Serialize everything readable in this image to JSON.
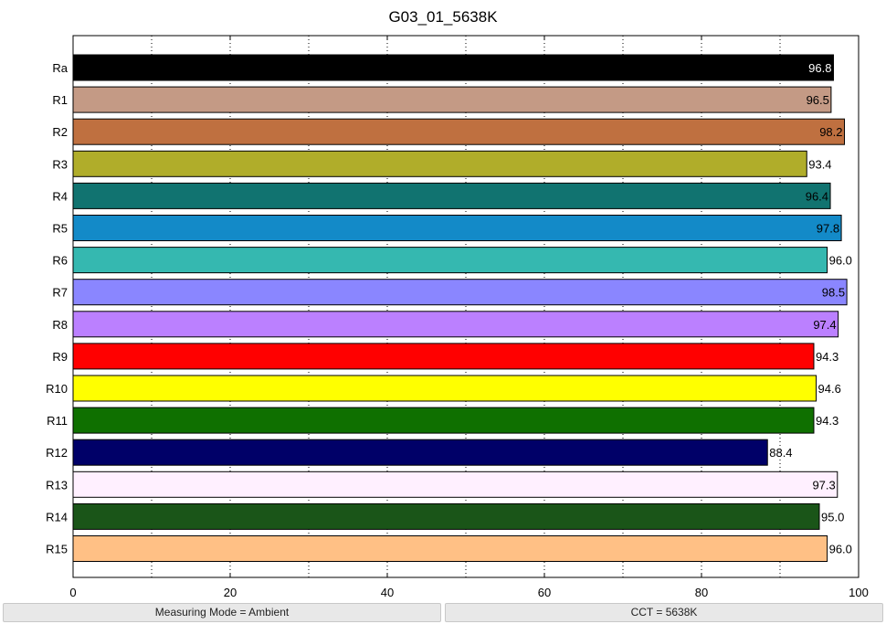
{
  "chart_data": {
    "type": "bar",
    "orientation": "horizontal",
    "title": "G03_01_5638K",
    "xlabel": "",
    "ylabel": "",
    "xlim": [
      0,
      100
    ],
    "xticks": [
      0,
      20,
      40,
      60,
      80,
      100
    ],
    "grid": "vertical dotted",
    "categories": [
      "Ra",
      "R1",
      "R2",
      "R3",
      "R4",
      "R5",
      "R6",
      "R7",
      "R8",
      "R9",
      "R10",
      "R11",
      "R12",
      "R13",
      "R14",
      "R15"
    ],
    "values": [
      96.8,
      96.5,
      98.2,
      93.4,
      96.4,
      97.8,
      96.0,
      98.5,
      97.4,
      94.3,
      94.6,
      94.3,
      88.4,
      97.3,
      95.0,
      96.0
    ],
    "value_labels": [
      "96.8",
      "96.5",
      "98.2",
      "93.4",
      "96.4",
      "97.8",
      "96.0",
      "98.5",
      "97.4",
      "94.3",
      "94.6",
      "94.3",
      "88.4",
      "97.3",
      "95.0",
      "96.0"
    ],
    "colors": [
      "#000000",
      "#c49a85",
      "#bf7040",
      "#b0ad2a",
      "#117370",
      "#138ac8",
      "#35b8b0",
      "#8a86ff",
      "#bb80ff",
      "#ff0000",
      "#ffff00",
      "#0f7000",
      "#000068",
      "#fff0ff",
      "#1a5518",
      "#ffc085"
    ],
    "label_colors": [
      "#ffffff",
      "#000000",
      "#000000",
      "#000000",
      "#000000",
      "#000000",
      "#000000",
      "#000000",
      "#000000",
      "#000000",
      "#000000",
      "#000000",
      "#000000",
      "#000000",
      "#000000",
      "#000000"
    ]
  },
  "status": {
    "measuring_mode": "Measuring Mode = Ambient",
    "cct": "CCT = 5638K"
  }
}
